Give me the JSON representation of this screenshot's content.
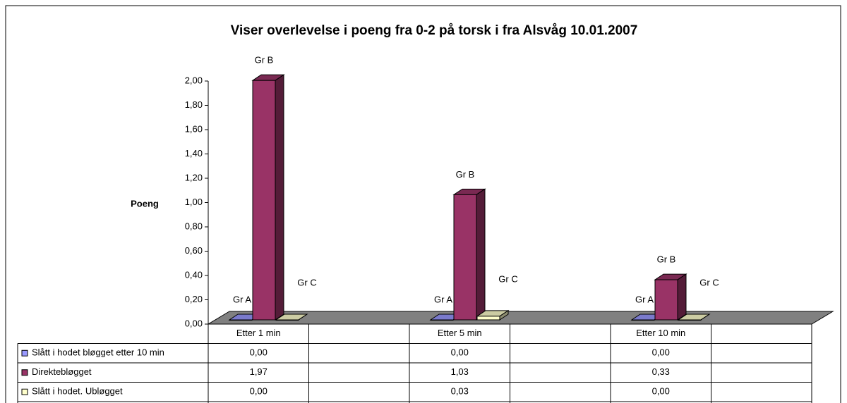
{
  "chart_data": {
    "type": "bar3d",
    "title": "Viser overlevelse i poeng fra 0-2 på torsk i fra Alsvåg 10.01.2007",
    "y_label": "Poeng",
    "categories": [
      "Etter 1 min",
      "Etter 5 min",
      "Etter 10 min"
    ],
    "series": [
      {
        "name": "Slått i hodet bløgget etter 10 min",
        "label": "Gr A",
        "color": "#9999ff",
        "values": [
          0,
          0,
          0
        ],
        "value_labels": [
          "0,00",
          "0,00",
          "0,00"
        ]
      },
      {
        "name": "Direktebløgget",
        "label": "Gr B",
        "color": "#993366",
        "values": [
          1.97,
          1.03,
          0.33
        ],
        "value_labels": [
          "1,97",
          "1,03",
          "0,33"
        ]
      },
      {
        "name": "Slått i hodet. Ubløgget",
        "label": "Gr C",
        "color": "#ffffcc",
        "values": [
          0,
          0.03,
          0
        ],
        "value_labels": [
          "0,00",
          "0,03",
          "0,00"
        ]
      }
    ],
    "ylim": [
      0,
      2
    ],
    "yticks": [
      {
        "value": 0,
        "label": "0,00"
      },
      {
        "value": 0.2,
        "label": "0,20"
      },
      {
        "value": 0.4,
        "label": "0,40"
      },
      {
        "value": 0.6,
        "label": "0,60"
      },
      {
        "value": 0.8,
        "label": "0,80"
      },
      {
        "value": 1,
        "label": "1,00"
      },
      {
        "value": 1.2,
        "label": "1,20"
      },
      {
        "value": 1.4,
        "label": "1,40"
      },
      {
        "value": 1.6,
        "label": "1,60"
      },
      {
        "value": 1.8,
        "label": "1,80"
      },
      {
        "value": 2,
        "label": "2,00"
      }
    ]
  }
}
